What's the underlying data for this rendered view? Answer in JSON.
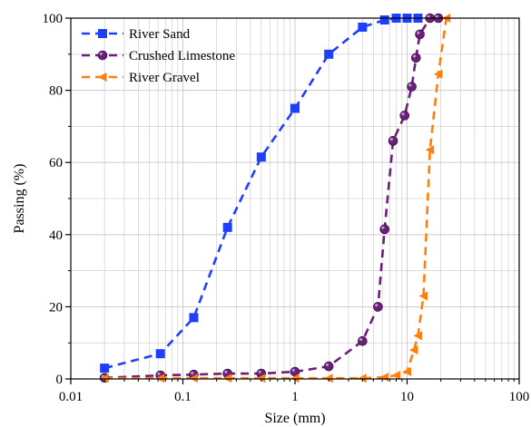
{
  "chart_data": {
    "type": "line",
    "xscale": "log",
    "xlim": [
      0.01,
      100
    ],
    "ylim": [
      0,
      100
    ],
    "xlabel": "Size (mm)",
    "ylabel": "Passing (%)",
    "xticks": [
      0.01,
      0.1,
      1,
      10,
      100
    ],
    "xtick_labels": [
      "0.01",
      "0.1",
      "1",
      "10",
      "100"
    ],
    "yticks": [
      0,
      20,
      40,
      60,
      80,
      100
    ],
    "ytick_labels": [
      "0",
      "20",
      "40",
      "60",
      "80",
      "100"
    ],
    "grid": true,
    "legend_position": "top-left",
    "series": [
      {
        "name": "River Sand",
        "color": "#1f3fff",
        "marker": "square",
        "x": [
          0.02,
          0.063,
          0.125,
          0.25,
          0.5,
          1,
          2,
          4,
          6.3,
          8,
          10,
          12.5
        ],
        "y": [
          3,
          7,
          17,
          42,
          61.5,
          75,
          90,
          97.5,
          99.5,
          100,
          100,
          100
        ]
      },
      {
        "name": "Crushed Limestone",
        "color": "#6b1f7a",
        "marker": "circle",
        "x": [
          0.02,
          0.063,
          0.125,
          0.25,
          0.5,
          1,
          2,
          4,
          5.5,
          6.3,
          7.5,
          9.5,
          11,
          12,
          13,
          16,
          19
        ],
        "y": [
          0.3,
          1,
          1.2,
          1.5,
          1.5,
          2,
          3.5,
          10.5,
          20,
          41.5,
          66,
          73,
          81,
          89,
          95.5,
          100,
          100
        ]
      },
      {
        "name": "River Gravel",
        "color": "#ff7f0e",
        "marker": "triangle-left",
        "x": [
          0.02,
          0.063,
          0.125,
          0.25,
          0.5,
          1,
          2,
          4,
          6.3,
          8,
          10,
          11.5,
          12.5,
          14,
          16,
          19,
          22.4
        ],
        "y": [
          0.2,
          0.2,
          0.2,
          0.2,
          0.2,
          0.2,
          0.2,
          0.2,
          0.5,
          1,
          2,
          8,
          12,
          23,
          63.5,
          84.5,
          100
        ]
      }
    ]
  }
}
